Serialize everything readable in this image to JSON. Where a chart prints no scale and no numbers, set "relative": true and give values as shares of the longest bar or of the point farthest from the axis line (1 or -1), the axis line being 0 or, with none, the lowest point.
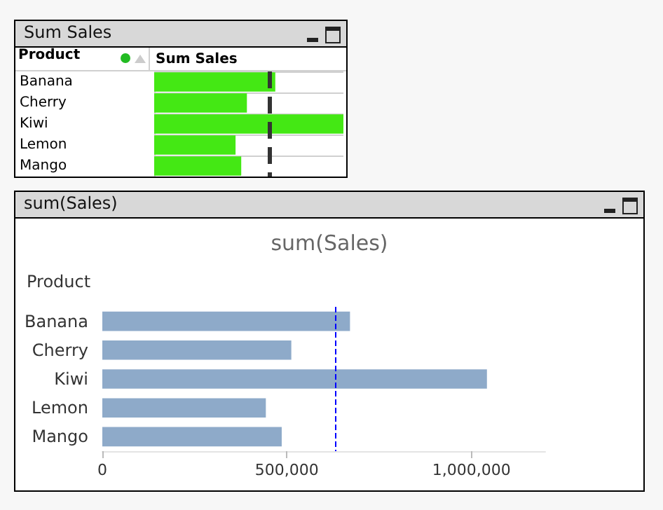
{
  "chart_data": [
    {
      "type": "bar",
      "title": "Sum Sales",
      "ylabel": "Product",
      "xlabel": "Sum Sales",
      "orientation": "horizontal",
      "relative": true,
      "categories": [
        "Banana",
        "Cherry",
        "Kiwi",
        "Lemon",
        "Mango"
      ],
      "values": [
        0.64,
        0.49,
        1,
        0.43,
        0.46
      ],
      "color": "#44e814",
      "ref_lines": [
        {
          "axis": "x",
          "value": 0.61,
          "color": "#333333",
          "line_style": "dashed"
        }
      ],
      "grid": "y"
    },
    {
      "type": "bar",
      "title": "sum(Sales)",
      "subtitle": "sum(Sales)",
      "ylabel": "Product",
      "orientation": "horizontal",
      "categories": [
        "Banana",
        "Cherry",
        "Kiwi",
        "Lemon",
        "Mango"
      ],
      "values": [
        671000,
        512000,
        1042000,
        443000,
        486000
      ],
      "color": "#8eaac9",
      "xlim": [
        0,
        1200000
      ],
      "xticks": [
        0,
        {
          "value": 500000,
          "label": "500,000"
        },
        {
          "value": 1000000,
          "label": "1,000,000"
        }
      ],
      "ref_lines": [
        {
          "axis": "x",
          "value": 632000,
          "color": "#0000ff",
          "line_style": "dashed"
        }
      ],
      "grid": false
    }
  ]
}
